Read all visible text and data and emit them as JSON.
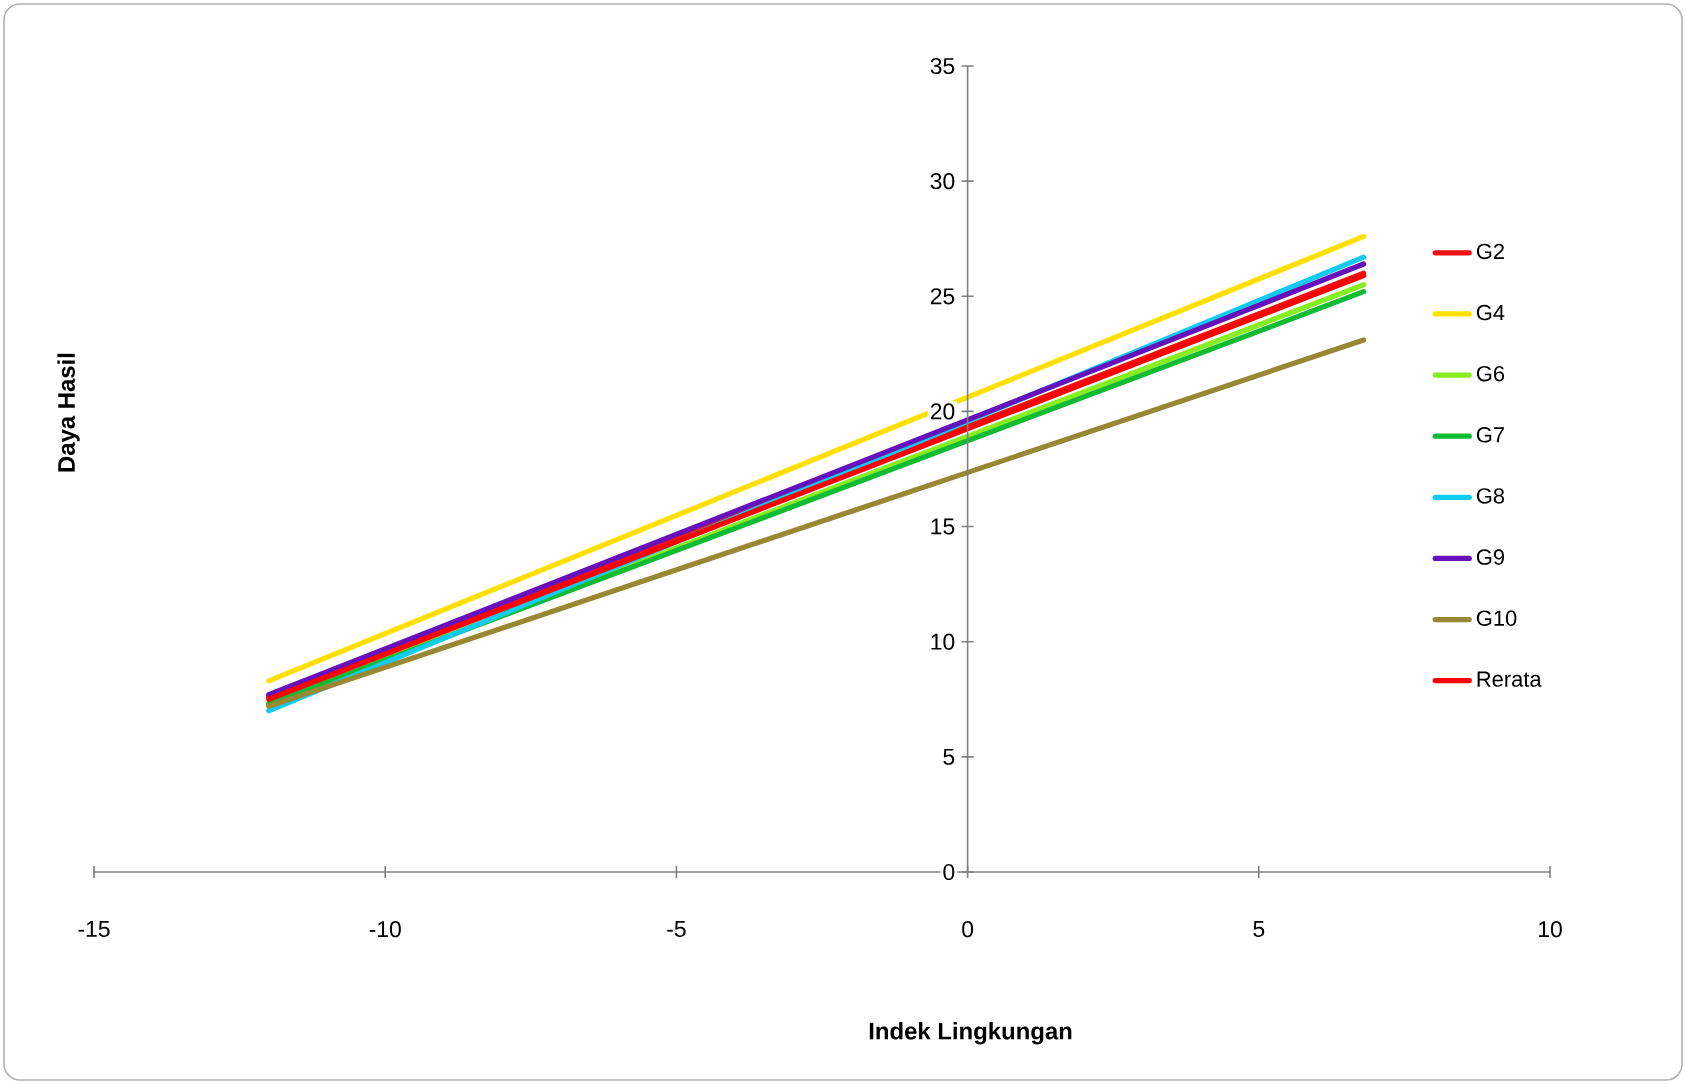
{
  "chart_data": {
    "type": "line",
    "xlabel": "Indek Lingkungan",
    "ylabel": "Daya Hasil",
    "x": [
      -12,
      6.8
    ],
    "series": [
      {
        "name": "G2",
        "color": "#ee1111",
        "values": [
          7.6,
          26.0
        ]
      },
      {
        "name": "G4",
        "color": "#ffe000",
        "values": [
          8.3,
          27.6
        ]
      },
      {
        "name": "G6",
        "color": "#88ee22",
        "values": [
          7.3,
          25.5
        ]
      },
      {
        "name": "G7",
        "color": "#11bb33",
        "values": [
          7.3,
          25.2
        ]
      },
      {
        "name": "G8",
        "color": "#11ccf0",
        "values": [
          7.0,
          26.7
        ]
      },
      {
        "name": "G9",
        "color": "#6611bb",
        "values": [
          7.7,
          26.4
        ]
      },
      {
        "name": "G10",
        "color": "#998833",
        "values": [
          7.2,
          23.1
        ]
      },
      {
        "name": "Rerata",
        "color": "#ff0000",
        "values": [
          7.5,
          25.9
        ]
      }
    ],
    "xlim": [
      -15,
      10
    ],
    "xticks": [
      -15,
      -10,
      -5,
      0,
      5,
      10
    ],
    "ylim": [
      0,
      35
    ],
    "yticks": [
      0,
      5,
      10,
      15,
      20,
      25,
      30,
      35
    ],
    "legend": "right",
    "marker": "none",
    "line_style": "solid"
  }
}
